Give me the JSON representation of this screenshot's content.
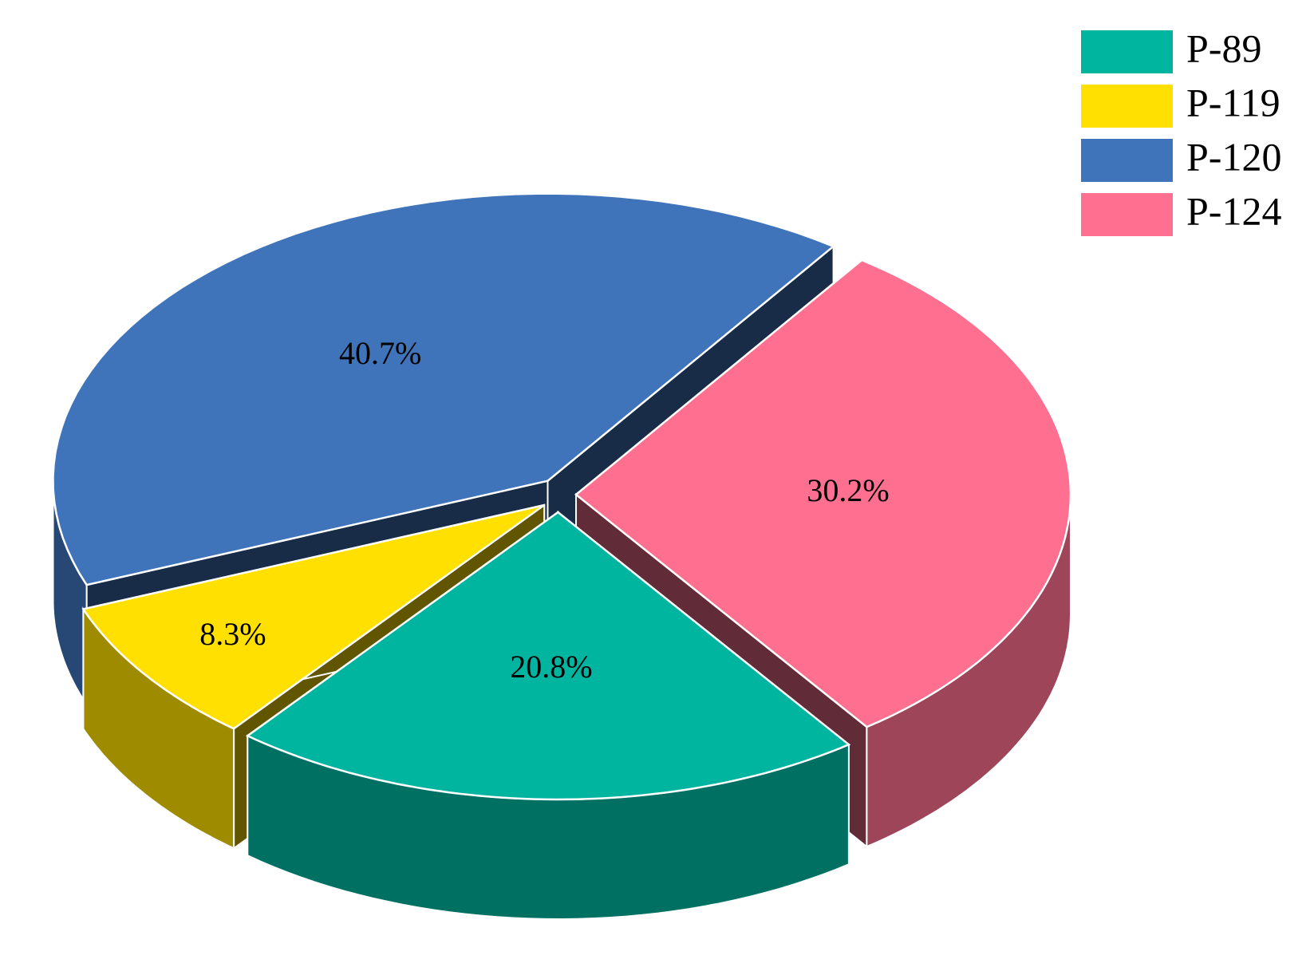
{
  "chart_data": {
    "type": "pie",
    "categories": [
      "P-89",
      "P-119",
      "P-120",
      "P-124"
    ],
    "values": [
      20.8,
      8.3,
      40.7,
      30.2
    ],
    "value_labels": [
      "20.8%",
      "8.3%",
      "40.7%",
      "30.2%"
    ],
    "colors": [
      "#00b5a0",
      "#ffe000",
      "#3f74bb",
      "#ff7090"
    ],
    "legend": "top-right"
  }
}
